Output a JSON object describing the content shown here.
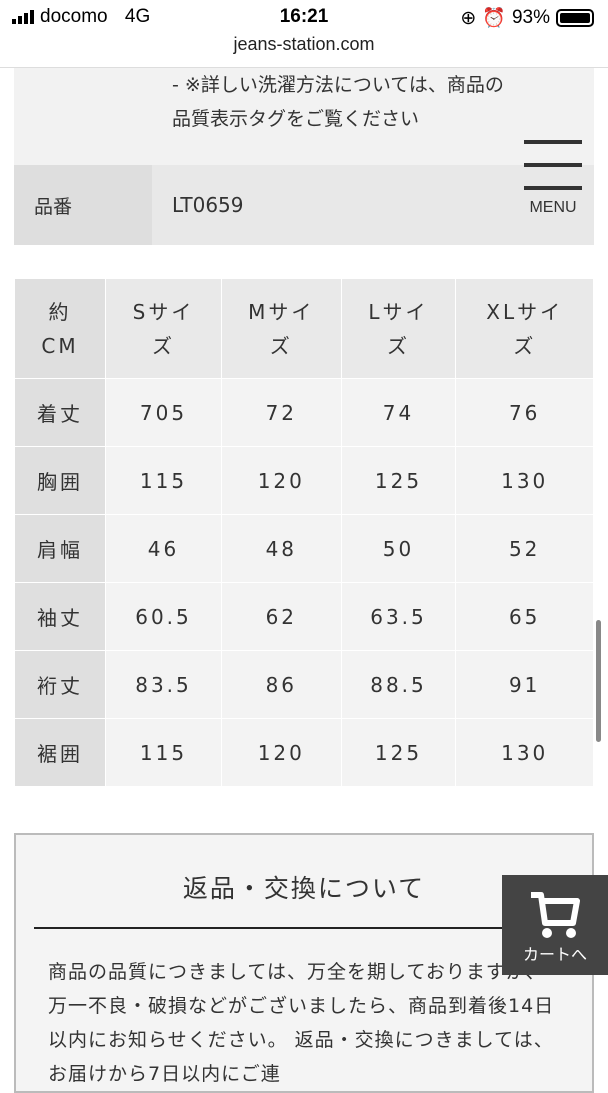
{
  "status_bar": {
    "carrier": "docomo",
    "network": "4G",
    "time": "16:21",
    "battery": "93%"
  },
  "browser": {
    "url": "jeans-station.com"
  },
  "product_info": {
    "care_note_lines": [
      "- ※詳しい洗濯方法については、商品の",
      "品質表示タグをご覧ください"
    ],
    "sku_label": "品番",
    "sku_value": "LT0659"
  },
  "menu": {
    "label": "MENU"
  },
  "size_table": {
    "headers": [
      "約CM",
      "Sサイズ",
      "Mサイズ",
      "Lサイズ",
      "XLサイズ"
    ],
    "rows": [
      {
        "label": "着丈",
        "values": [
          "705",
          "72",
          "74",
          "76"
        ]
      },
      {
        "label": "胸囲",
        "values": [
          "115",
          "120",
          "125",
          "130"
        ]
      },
      {
        "label": "肩幅",
        "values": [
          "46",
          "48",
          "50",
          "52"
        ]
      },
      {
        "label": "袖丈",
        "values": [
          "60.5",
          "62",
          "63.5",
          "65"
        ]
      },
      {
        "label": "裄丈",
        "values": [
          "83.5",
          "86",
          "88.5",
          "91"
        ]
      },
      {
        "label": "裾囲",
        "values": [
          "115",
          "120",
          "125",
          "130"
        ]
      }
    ]
  },
  "returns": {
    "title": "返品・交換について",
    "body": "商品の品質につきましては、万全を期しておりますが、万一不良・破損などがございましたら、商品到着後14日以内にお知らせください。 返品・交換につきましては、お届けから7日以内にご連"
  },
  "cart_button": {
    "label": "カートへ",
    "icon": "cart-icon"
  }
}
